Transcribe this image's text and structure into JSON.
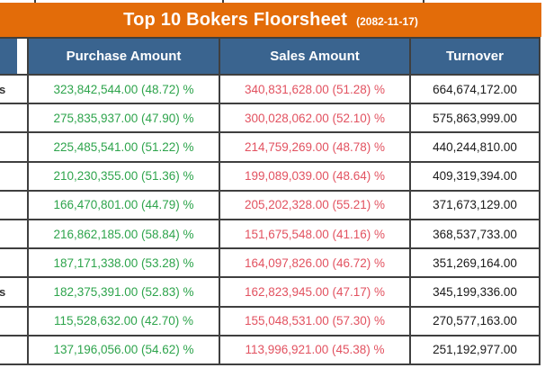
{
  "title_bar": {
    "title": "Top 10 Bokers Floorsheet",
    "date": "(2082-11-17)"
  },
  "table": {
    "headers": {
      "name": "",
      "purchase": "Purchase Amount",
      "sales": "Sales Amount",
      "turnover": "Turnover"
    },
    "rows": [
      {
        "name_fragment": "s",
        "purchase": "323,842,544.00 (48.72) %",
        "sales": "340,831,628.00 (51.28) %",
        "turnover": "664,674,172.00"
      },
      {
        "name_fragment": "",
        "purchase": "275,835,937.00 (47.90) %",
        "sales": "300,028,062.00 (52.10) %",
        "turnover": "575,863,999.00"
      },
      {
        "name_fragment": "",
        "purchase": "225,485,541.00 (51.22) %",
        "sales": "214,759,269.00 (48.78) %",
        "turnover": "440,244,810.00"
      },
      {
        "name_fragment": "",
        "purchase": "210,230,355.00 (51.36) %",
        "sales": "199,089,039.00 (48.64) %",
        "turnover": "409,319,394.00"
      },
      {
        "name_fragment": "",
        "purchase": "166,470,801.00 (44.79) %",
        "sales": "205,202,328.00 (55.21) %",
        "turnover": "371,673,129.00"
      },
      {
        "name_fragment": "",
        "purchase": "216,862,185.00 (58.84) %",
        "sales": "151,675,548.00 (41.16) %",
        "turnover": "368,537,733.00"
      },
      {
        "name_fragment": "",
        "purchase": "187,171,338.00 (53.28) %",
        "sales": "164,097,826.00 (46.72) %",
        "turnover": "351,269,164.00"
      },
      {
        "name_fragment": "s",
        "purchase": "182,375,391.00 (52.83) %",
        "sales": "162,823,945.00 (47.17) %",
        "turnover": "345,199,336.00"
      },
      {
        "name_fragment": "",
        "purchase": "115,528,632.00 (42.70) %",
        "sales": "155,048,531.00 (57.30) %",
        "turnover": "270,577,163.00"
      },
      {
        "name_fragment": "",
        "purchase": "137,196,056.00 (54.62) %",
        "sales": "113,996,921.00 (45.38) %",
        "turnover": "251,192,977.00"
      }
    ]
  },
  "colors": {
    "accent_orange": "#E36C09",
    "header_blue": "#3A648F",
    "purchase_green": "#2EA44C",
    "sales_red": "#E25260",
    "border": "#3F3F3F",
    "turnover_black": "#1A1A1A"
  }
}
